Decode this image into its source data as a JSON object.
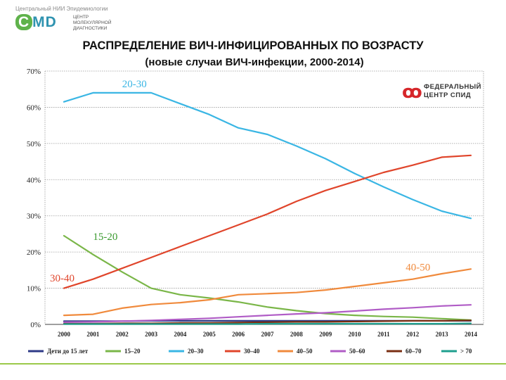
{
  "logo": {
    "org": "Центральный НИИ Эпидемиологии",
    "brand": "CMD",
    "sub_lines": [
      "ЦЕНТР",
      "МОЛЕКУЛЯРНОЙ",
      "ДИАГНОСТИКИ"
    ]
  },
  "partner_logo": {
    "line1": "ФЕДЕРАЛЬНЫЙ",
    "line2": "ЦЕНТР СПИД"
  },
  "chart_data": {
    "type": "line",
    "title": "РАСПРЕДЕЛЕНИЕ ВИЧ-ИНФИЦИРОВАННЫХ ПО ВОЗРАСТУ",
    "subtitle": "(новые случаи ВИЧ-инфекции, 2000-2014)",
    "x": [
      "2000",
      "2001",
      "2002",
      "2003",
      "2004",
      "2005",
      "2006",
      "2007",
      "2008",
      "2009",
      "2010",
      "2011",
      "2012",
      "2013",
      "2014"
    ],
    "ylim": [
      0,
      70
    ],
    "yticks": [
      "0%",
      "10%",
      "20%",
      "30%",
      "40%",
      "50%",
      "60%",
      "70%"
    ],
    "grid": true,
    "legend_position": "bottom",
    "series": [
      {
        "name": "Дети до 15 лет",
        "color": "#2e3a87",
        "values": [
          0.9,
          0.9,
          0.9,
          1.0,
          1.0,
          1.0,
          1.0,
          1.0,
          1.0,
          1.0,
          1.0,
          1.0,
          1.0,
          1.0,
          1.0
        ]
      },
      {
        "name": "15–20",
        "color": "#7ab648",
        "values": [
          24.5,
          19.3,
          14.5,
          10.0,
          8.2,
          7.3,
          6.2,
          4.8,
          3.8,
          3.0,
          2.5,
          2.2,
          2.0,
          1.6,
          1.2
        ]
      },
      {
        "name": "20–30",
        "color": "#3ab6e4",
        "values": [
          61.5,
          64.0,
          64.0,
          64.0,
          61.0,
          58.0,
          54.3,
          52.5,
          49.3,
          45.8,
          41.7,
          38.0,
          34.5,
          31.3,
          29.3
        ]
      },
      {
        "name": "30–40",
        "color": "#e0452b",
        "values": [
          10.0,
          12.5,
          15.5,
          18.5,
          21.5,
          24.5,
          27.5,
          30.5,
          34.0,
          37.0,
          39.5,
          42.0,
          44.0,
          46.2,
          46.7
        ]
      },
      {
        "name": "40–50",
        "color": "#f08a3c",
        "values": [
          2.5,
          2.8,
          4.5,
          5.5,
          6.0,
          6.8,
          8.2,
          8.5,
          8.8,
          9.5,
          10.5,
          11.5,
          12.5,
          14.0,
          15.3
        ]
      },
      {
        "name": "50–60",
        "color": "#b05cc6",
        "values": [
          0.6,
          0.7,
          0.9,
          1.1,
          1.4,
          1.7,
          2.1,
          2.5,
          2.9,
          3.2,
          3.7,
          4.2,
          4.6,
          5.1,
          5.4
        ]
      },
      {
        "name": "60–70",
        "color": "#7a2e12",
        "values": [
          0.2,
          0.2,
          0.3,
          0.3,
          0.4,
          0.4,
          0.5,
          0.6,
          0.7,
          0.7,
          0.8,
          0.9,
          1.0,
          1.0,
          1.1
        ]
      },
      {
        "name": "> 70",
        "color": "#1e9f8e",
        "values": [
          0.1,
          0.1,
          0.1,
          0.1,
          0.1,
          0.1,
          0.1,
          0.2,
          0.2,
          0.2,
          0.2,
          0.2,
          0.2,
          0.2,
          0.3
        ]
      }
    ],
    "annotations": [
      {
        "text": "20-30",
        "x": "2002",
        "y": 66.5,
        "color": "#3ab6e4"
      },
      {
        "text": "15-20",
        "x": "2001",
        "y": 24.3,
        "color": "#3a9a2e"
      },
      {
        "text": "30-40",
        "x": "2000",
        "y": 12.8,
        "color": "#e0452b"
      },
      {
        "text": "40-50",
        "x": "2012",
        "y": 15.8,
        "color": "#f08a3c"
      }
    ]
  }
}
